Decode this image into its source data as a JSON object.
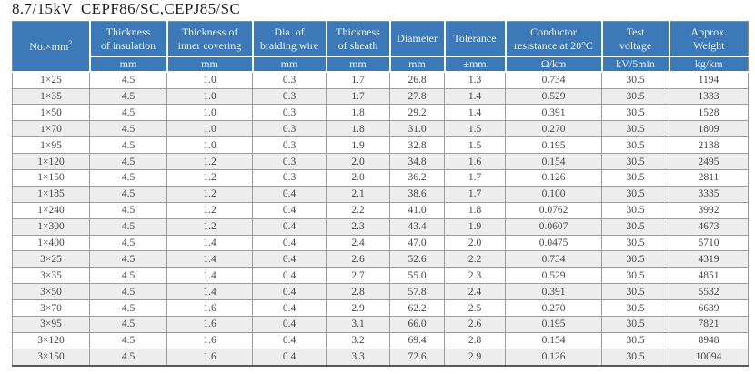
{
  "title": "8.7/15kV  CEPF86/SC,CEPJ85/SC",
  "colors": {
    "header_bg": "#3b79b8",
    "header_text": "#eef4fb",
    "stripe": "#ededed",
    "grid": "#9c9c9c",
    "body_text": "#454545"
  },
  "table": {
    "corner": {
      "label": "No.×mm",
      "sup": "2"
    },
    "columns": [
      {
        "label": "Thickness\nof insulation",
        "unit": "mm"
      },
      {
        "label": "Thickness of\ninner covering",
        "unit": "mm"
      },
      {
        "label": "Dia. of\nbraiding wire",
        "unit": "mm"
      },
      {
        "label": "Thickness\nof sheath",
        "unit": "mm"
      },
      {
        "label": "Diameter",
        "unit": "mm"
      },
      {
        "label": "Tolerance",
        "unit": "±mm"
      },
      {
        "label": "Conductor\nresistance at 20°C",
        "unit": "Ω/km"
      },
      {
        "label": "Test\nvoltage",
        "unit": "kV/5min"
      },
      {
        "label": "Approx.\nWeight",
        "unit": "kg/km"
      }
    ],
    "rows": [
      [
        "1×25",
        "4.5",
        "1.0",
        "0.3",
        "1.7",
        "26.8",
        "1.3",
        "0.734",
        "30.5",
        "1194"
      ],
      [
        "1×35",
        "4.5",
        "1.0",
        "0.3",
        "1.7",
        "27.8",
        "1.4",
        "0.529",
        "30.5",
        "1333"
      ],
      [
        "1×50",
        "4.5",
        "1.0",
        "0.3",
        "1.8",
        "29.2",
        "1.4",
        "0.391",
        "30.5",
        "1528"
      ],
      [
        "1×70",
        "4.5",
        "1.0",
        "0.3",
        "1.8",
        "31.0",
        "1.5",
        "0.270",
        "30.5",
        "1809"
      ],
      [
        "1×95",
        "4.5",
        "1.0",
        "0.3",
        "1.9",
        "32.8",
        "1.5",
        "0.195",
        "30.5",
        "2138"
      ],
      [
        "1×120",
        "4.5",
        "1.2",
        "0.3",
        "2.0",
        "34.8",
        "1.6",
        "0.154",
        "30.5",
        "2495"
      ],
      [
        "1×150",
        "4.5",
        "1.2",
        "0.3",
        "2.0",
        "36.2",
        "1.7",
        "0.126",
        "30.5",
        "2811"
      ],
      [
        "1×185",
        "4.5",
        "1.2",
        "0.4",
        "2.1",
        "38.6",
        "1.7",
        "0.100",
        "30.5",
        "3335"
      ],
      [
        "1×240",
        "4.5",
        "1.2",
        "0.4",
        "2.2",
        "41.0",
        "1.8",
        "0.0762",
        "30.5",
        "3992"
      ],
      [
        "1×300",
        "4.5",
        "1.2",
        "0.4",
        "2.3",
        "43.4",
        "1.9",
        "0.0607",
        "30.5",
        "4673"
      ],
      [
        "1×400",
        "4.5",
        "1.4",
        "0.4",
        "2.4",
        "47.0",
        "2.0",
        "0.0475",
        "30.5",
        "5710"
      ],
      [
        "3×25",
        "4.5",
        "1.4",
        "0.4",
        "2.6",
        "52.6",
        "2.2",
        "0.734",
        "30.5",
        "4319"
      ],
      [
        "3×35",
        "4.5",
        "1.4",
        "0.4",
        "2.7",
        "55.0",
        "2.3",
        "0.529",
        "30.5",
        "4851"
      ],
      [
        "3×50",
        "4.5",
        "1.4",
        "0.4",
        "2.8",
        "57.8",
        "2.4",
        "0.391",
        "30.5",
        "5532"
      ],
      [
        "3×70",
        "4.5",
        "1.6",
        "0.4",
        "2.9",
        "62.2",
        "2.5",
        "0.270",
        "30.5",
        "6639"
      ],
      [
        "3×95",
        "4.5",
        "1.6",
        "0.4",
        "3.1",
        "66.0",
        "2.6",
        "0.195",
        "30.5",
        "7821"
      ],
      [
        "3×120",
        "4.5",
        "1.6",
        "0.4",
        "3.2",
        "69.4",
        "2.8",
        "0.154",
        "30.5",
        "8948"
      ],
      [
        "3×150",
        "4.5",
        "1.6",
        "0.4",
        "3.3",
        "72.6",
        "2.9",
        "0.126",
        "30.5",
        "10094"
      ]
    ]
  }
}
